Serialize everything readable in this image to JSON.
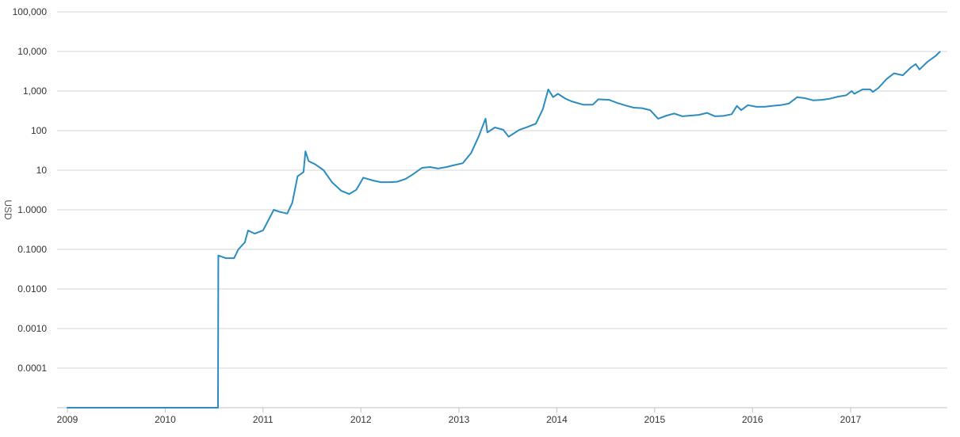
{
  "chart_data": {
    "type": "line",
    "title": "",
    "xlabel": "",
    "ylabel": "USD",
    "yscale": "log",
    "ylim": [
      1e-05,
      100000
    ],
    "xlim": [
      "2009-01-01",
      "2017-12-01"
    ],
    "grid": true,
    "legend": "none",
    "y_ticks": [
      "0.0001",
      "0.0010",
      "0.0100",
      "0.1000",
      "1.0000",
      "10",
      "100",
      "1,000",
      "10,000",
      "100,000"
    ],
    "x_ticks": [
      "2009",
      "2010",
      "2011",
      "2012",
      "2013",
      "2014",
      "2015",
      "2016",
      "2017"
    ],
    "colors": {
      "line": "#2b8cbe"
    },
    "series": [
      {
        "x": [
          "2009-01-01",
          "2010-07-17",
          "2010-07-18",
          "2010-08-15",
          "2010-09-15",
          "2010-10-01",
          "2010-10-25",
          "2010-11-06",
          "2010-12-01",
          "2011-01-01",
          "2011-02-10",
          "2011-03-01",
          "2011-04-01",
          "2011-04-20",
          "2011-05-10",
          "2011-06-01",
          "2011-06-08",
          "2011-06-20",
          "2011-07-15",
          "2011-08-15",
          "2011-09-15",
          "2011-10-20",
          "2011-11-18",
          "2011-12-15",
          "2012-01-10",
          "2012-02-15",
          "2012-03-15",
          "2012-04-15",
          "2012-05-15",
          "2012-06-15",
          "2012-07-15",
          "2012-08-16",
          "2012-09-15",
          "2012-10-15",
          "2012-11-15",
          "2012-12-15",
          "2013-01-15",
          "2013-02-15",
          "2013-03-15",
          "2013-04-10",
          "2013-04-17",
          "2013-05-15",
          "2013-06-15",
          "2013-07-05",
          "2013-08-15",
          "2013-09-15",
          "2013-10-15",
          "2013-11-10",
          "2013-11-30",
          "2013-12-18",
          "2014-01-05",
          "2014-02-01",
          "2014-02-25",
          "2014-04-10",
          "2014-05-15",
          "2014-06-05",
          "2014-07-15",
          "2014-08-15",
          "2014-09-15",
          "2014-10-15",
          "2014-11-15",
          "2014-12-15",
          "2015-01-14",
          "2015-02-15",
          "2015-03-15",
          "2015-04-15",
          "2015-05-15",
          "2015-06-15",
          "2015-07-15",
          "2015-08-15",
          "2015-09-15",
          "2015-10-15",
          "2015-11-04",
          "2015-11-20",
          "2015-12-15",
          "2016-01-15",
          "2016-02-15",
          "2016-03-15",
          "2016-04-15",
          "2016-05-15",
          "2016-06-16",
          "2016-07-15",
          "2016-08-15",
          "2016-09-15",
          "2016-10-15",
          "2016-11-15",
          "2016-12-15",
          "2017-01-05",
          "2017-01-15",
          "2017-02-15",
          "2017-03-15",
          "2017-03-25",
          "2017-04-15",
          "2017-05-15",
          "2017-06-12",
          "2017-07-15",
          "2017-08-15",
          "2017-09-01",
          "2017-09-15",
          "2017-10-15",
          "2017-11-15",
          "2017-11-30"
        ],
        "values": [
          1e-05,
          1e-05,
          0.07,
          0.06,
          0.06,
          0.1,
          0.15,
          0.3,
          0.25,
          0.3,
          1.0,
          0.9,
          0.8,
          1.5,
          7.0,
          9.0,
          30.0,
          17.0,
          14.0,
          10.0,
          5.0,
          3.0,
          2.5,
          3.2,
          6.5,
          5.5,
          5.0,
          5.0,
          5.1,
          6.0,
          8.0,
          11.5,
          12.0,
          11.0,
          12.0,
          13.5,
          15.0,
          27.0,
          70.0,
          200.0,
          90.0,
          120.0,
          105.0,
          70.0,
          105.0,
          125.0,
          150.0,
          350.0,
          1100.0,
          700.0,
          850.0,
          650.0,
          550.0,
          450.0,
          450.0,
          620.0,
          600.0,
          500.0,
          430.0,
          380.0,
          370.0,
          330.0,
          200.0,
          240.0,
          270.0,
          230.0,
          240.0,
          250.0,
          280.0,
          230.0,
          235.0,
          260.0,
          420.0,
          330.0,
          440.0,
          400.0,
          400.0,
          420.0,
          440.0,
          480.0,
          700.0,
          660.0,
          580.0,
          600.0,
          640.0,
          720.0,
          780.0,
          1000.0,
          850.0,
          1100.0,
          1100.0,
          950.0,
          1200.0,
          2000.0,
          2800.0,
          2500.0,
          4000.0,
          4800.0,
          3500.0,
          5500.0,
          7800.0,
          9800.0
        ]
      }
    ]
  }
}
